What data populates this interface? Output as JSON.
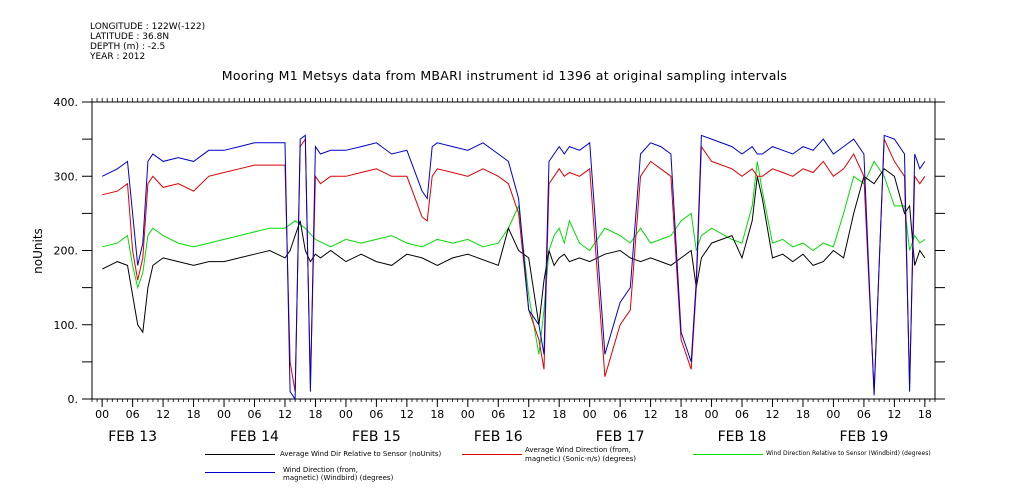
{
  "meta": {
    "lines": [
      "LONGITUDE : 122W(-122)",
      "LATITUDE : 36.8N",
      "DEPTH (m) : -2.5",
      "YEAR : 2012"
    ]
  },
  "title": "Mooring M1 Metsys data from MBARI instrument id 1396 at original sampling intervals",
  "legend": {
    "s1_line1": "Average Wind Dir Relative to Sensor (noUnits)",
    "s2_line1": "Average Wind Direction (from,",
    "s2_line2": "magnetic) (Sonic-n/s) (degrees)",
    "s3_line1": "Wind Direction Relative to Sensor (Windbird) (degrees)",
    "s4_line1": "Wind Direction (from,",
    "s4_line2": "magnetic) (Windbird) (degrees)"
  },
  "chart_data": {
    "type": "line",
    "title": "Mooring M1 Metsys data from MBARI instrument id 1396 at original sampling intervals",
    "ylabel": "noUnits",
    "xlabel": "",
    "ylim": [
      0,
      400
    ],
    "yticks": [
      "0.",
      "100.",
      "200.",
      "300.",
      "400."
    ],
    "xlim_hours": [
      -2,
      164
    ],
    "x_units": "hours from 00Z FEB 13 2012",
    "hour_ticks": [
      "00",
      "06",
      "12",
      "18"
    ],
    "day_labels": [
      "FEB 13",
      "FEB 14",
      "FEB 15",
      "FEB 16",
      "FEB 17",
      "FEB 18",
      "FEB 19"
    ],
    "grid": false,
    "legend_position": "bottom",
    "series": [
      {
        "name": "Average Wind Dir Relative to Sensor (noUnits)",
        "color": "#000000",
        "x": [
          0,
          3,
          5,
          6,
          7,
          8,
          9,
          10,
          12,
          15,
          18,
          21,
          24,
          27,
          30,
          33,
          36,
          37,
          38,
          39,
          40,
          41,
          42,
          43,
          45,
          48,
          51,
          54,
          57,
          60,
          63,
          66,
          69,
          72,
          78,
          80,
          82,
          84,
          86,
          87,
          88,
          89,
          90,
          91,
          92,
          94,
          96,
          99,
          102,
          104,
          106,
          108,
          110,
          112,
          114,
          116,
          117,
          118,
          120,
          124,
          126,
          128,
          129,
          130,
          132,
          134,
          136,
          138,
          140,
          142,
          144,
          146,
          148,
          150,
          152,
          154,
          156,
          158,
          159,
          160,
          161,
          162
        ],
        "y": [
          175,
          185,
          180,
          140,
          100,
          90,
          150,
          180,
          190,
          185,
          180,
          185,
          185,
          190,
          195,
          200,
          190,
          200,
          220,
          240,
          200,
          185,
          195,
          190,
          200,
          185,
          195,
          185,
          180,
          195,
          190,
          180,
          190,
          195,
          180,
          230,
          200,
          190,
          100,
          160,
          200,
          180,
          190,
          195,
          185,
          190,
          185,
          195,
          200,
          190,
          185,
          190,
          185,
          180,
          190,
          200,
          150,
          190,
          210,
          220,
          190,
          240,
          300,
          270,
          190,
          195,
          185,
          195,
          180,
          185,
          200,
          190,
          250,
          300,
          290,
          310,
          300,
          250,
          260,
          180,
          200,
          190
        ]
      },
      {
        "name": "Average Wind Direction (from, magnetic) (Sonic-n/s) (degrees)",
        "color": "#dd0000",
        "x": [
          0,
          3,
          5,
          6,
          7,
          8,
          9,
          10,
          12,
          15,
          18,
          21,
          24,
          27,
          30,
          33,
          36,
          37,
          38,
          39,
          40,
          41,
          42,
          43,
          45,
          48,
          51,
          54,
          57,
          60,
          63,
          64,
          65,
          66,
          69,
          72,
          75,
          78,
          80,
          82,
          84,
          86,
          87,
          88,
          89,
          90,
          91,
          92,
          94,
          96,
          99,
          102,
          104,
          106,
          108,
          110,
          112,
          114,
          116,
          117,
          118,
          120,
          124,
          126,
          128,
          129,
          130,
          132,
          134,
          136,
          138,
          140,
          142,
          144,
          146,
          148,
          150,
          152,
          154,
          156,
          158,
          159,
          160,
          161,
          162
        ],
        "y": [
          275,
          280,
          290,
          200,
          160,
          190,
          290,
          300,
          285,
          290,
          280,
          300,
          305,
          310,
          315,
          315,
          315,
          50,
          10,
          340,
          350,
          20,
          300,
          290,
          300,
          300,
          305,
          310,
          300,
          300,
          245,
          240,
          300,
          310,
          305,
          300,
          310,
          300,
          290,
          250,
          120,
          80,
          40,
          290,
          300,
          310,
          300,
          305,
          300,
          310,
          30,
          100,
          120,
          300,
          320,
          310,
          300,
          80,
          40,
          150,
          340,
          320,
          310,
          300,
          310,
          300,
          300,
          310,
          305,
          300,
          310,
          305,
          320,
          300,
          310,
          330,
          300,
          10,
          350,
          320,
          300,
          20,
          300,
          290,
          300
        ]
      },
      {
        "name": "Wind Direction Relative to Sensor (Windbird) (degrees)",
        "color": "#00dd00",
        "x": [
          0,
          3,
          5,
          6,
          7,
          8,
          9,
          10,
          12,
          15,
          18,
          21,
          24,
          27,
          30,
          33,
          36,
          38,
          40,
          42,
          45,
          48,
          51,
          54,
          57,
          60,
          63,
          66,
          69,
          72,
          75,
          78,
          80,
          82,
          84,
          86,
          87,
          88,
          89,
          90,
          91,
          92,
          94,
          96,
          99,
          102,
          104,
          106,
          108,
          110,
          112,
          114,
          116,
          117,
          118,
          120,
          124,
          126,
          128,
          129,
          130,
          132,
          134,
          136,
          138,
          140,
          142,
          144,
          146,
          148,
          150,
          152,
          154,
          156,
          158,
          159,
          160,
          161,
          162
        ],
        "y": [
          205,
          210,
          220,
          180,
          150,
          170,
          220,
          230,
          220,
          210,
          205,
          210,
          215,
          220,
          225,
          230,
          230,
          240,
          230,
          215,
          205,
          215,
          210,
          215,
          220,
          210,
          205,
          215,
          210,
          215,
          205,
          210,
          230,
          260,
          140,
          60,
          120,
          200,
          220,
          230,
          210,
          240,
          210,
          200,
          230,
          220,
          210,
          230,
          210,
          215,
          220,
          240,
          250,
          200,
          220,
          230,
          215,
          210,
          260,
          320,
          280,
          210,
          215,
          205,
          210,
          200,
          210,
          205,
          250,
          300,
          290,
          320,
          300,
          260,
          260,
          200,
          220,
          210,
          215
        ]
      },
      {
        "name": "Wind Direction (from, magnetic) (Windbird) (degrees)",
        "color": "#0000cc",
        "x": [
          0,
          3,
          5,
          6,
          7,
          8,
          9,
          10,
          12,
          15,
          18,
          21,
          24,
          27,
          30,
          33,
          36,
          37,
          38,
          39,
          40,
          41,
          42,
          43,
          45,
          48,
          51,
          54,
          57,
          60,
          63,
          64,
          65,
          66,
          69,
          72,
          75,
          78,
          80,
          82,
          84,
          86,
          87,
          88,
          89,
          90,
          91,
          92,
          94,
          96,
          99,
          102,
          104,
          106,
          108,
          110,
          112,
          114,
          116,
          117,
          118,
          120,
          124,
          126,
          128,
          129,
          130,
          132,
          134,
          136,
          138,
          140,
          142,
          144,
          146,
          148,
          150,
          152,
          154,
          156,
          158,
          159,
          160,
          161,
          162
        ],
        "y": [
          300,
          310,
          320,
          250,
          180,
          210,
          320,
          330,
          320,
          325,
          320,
          335,
          335,
          340,
          345,
          345,
          345,
          10,
          0,
          350,
          355,
          10,
          340,
          330,
          335,
          335,
          340,
          345,
          330,
          335,
          280,
          270,
          340,
          345,
          340,
          335,
          345,
          330,
          320,
          270,
          120,
          100,
          60,
          320,
          330,
          340,
          330,
          340,
          335,
          345,
          60,
          130,
          150,
          330,
          345,
          340,
          330,
          90,
          50,
          160,
          355,
          350,
          340,
          330,
          340,
          330,
          330,
          340,
          335,
          330,
          340,
          335,
          350,
          330,
          340,
          350,
          330,
          5,
          355,
          350,
          330,
          10,
          330,
          310,
          320
        ]
      }
    ]
  }
}
